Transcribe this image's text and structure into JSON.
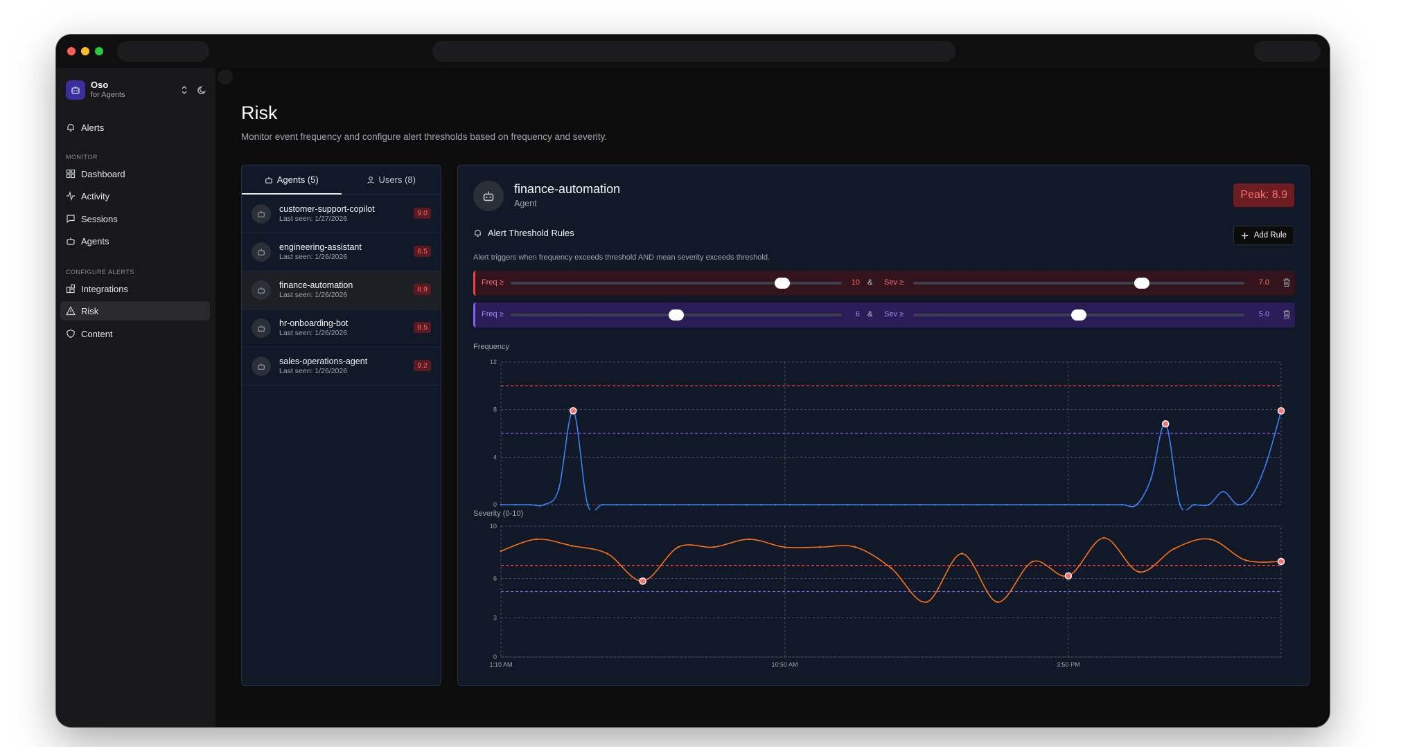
{
  "app": {
    "name": "Oso",
    "subtitle": "for Agents"
  },
  "sidebar": {
    "top_items": [
      {
        "label": "Alerts",
        "icon": "bell-icon"
      }
    ],
    "monitor_heading": "MONITOR",
    "monitor_items": [
      {
        "label": "Dashboard",
        "icon": "dashboard-icon"
      },
      {
        "label": "Activity",
        "icon": "activity-icon"
      },
      {
        "label": "Sessions",
        "icon": "sessions-icon"
      },
      {
        "label": "Agents",
        "icon": "robot-icon"
      }
    ],
    "configure_heading": "CONFIGURE ALERTS",
    "configure_items": [
      {
        "label": "Integrations",
        "icon": "integrations-icon"
      },
      {
        "label": "Risk",
        "icon": "warning-icon",
        "active": true
      },
      {
        "label": "Content",
        "icon": "shield-icon"
      }
    ]
  },
  "page": {
    "title": "Risk",
    "subtitle": "Monitor event frequency and configure alert thresholds based on frequency and severity."
  },
  "tabs": [
    {
      "label": "Agents (5)",
      "active": true
    },
    {
      "label": "Users (8)",
      "active": false
    }
  ],
  "agents": [
    {
      "name": "customer-support-copilot",
      "last_seen": "Last seen: 1/27/2026",
      "score": "9.0"
    },
    {
      "name": "engineering-assistant",
      "last_seen": "Last seen: 1/26/2026",
      "score": "6.5"
    },
    {
      "name": "finance-automation",
      "last_seen": "Last seen: 1/26/2026",
      "score": "8.9",
      "selected": true
    },
    {
      "name": "hr-onboarding-bot",
      "last_seen": "Last seen: 1/26/2026",
      "score": "8.5"
    },
    {
      "name": "sales-operations-agent",
      "last_seen": "Last seen: 1/26/2026",
      "score": "9.2"
    }
  ],
  "detail": {
    "name": "finance-automation",
    "type": "Agent",
    "peak": "Peak: 8.9",
    "rules_title": "Alert Threshold Rules",
    "add_rule": "Add Rule",
    "rules_desc": "Alert triggers when frequency exceeds threshold AND mean severity exceeds threshold.",
    "rules": [
      {
        "freq_label": "Freq ≥",
        "freq_value": "10",
        "amp": "&",
        "sev_label": "Sev ≥",
        "sev_value": "7.0",
        "color": "#ef4444",
        "freq_fraction": 0.82,
        "sev_fraction": 0.69
      },
      {
        "freq_label": "Freq ≥",
        "freq_value": "6",
        "amp": "&",
        "sev_label": "Sev ≥",
        "sev_value": "5.0",
        "color": "#8b5cf6",
        "freq_fraction": 0.5,
        "sev_fraction": 0.5
      }
    ],
    "frequency_label": "Frequency",
    "severity_label": "Severity (0-10)"
  },
  "chart_data": [
    {
      "type": "line",
      "ylabel": "Frequency",
      "ylim": [
        0,
        12
      ],
      "yticks": [
        "0",
        "4",
        "8",
        "12"
      ],
      "grid": true,
      "thresholds": [
        {
          "value": 10,
          "color": "#ef4444"
        },
        {
          "value": 6,
          "color": "#8b5cf6"
        }
      ],
      "series": [
        {
          "color": "#3b82f6",
          "values": [
            0,
            0,
            0,
            0,
            1.3,
            7.9,
            0,
            0,
            0,
            0,
            0,
            0,
            0,
            0,
            0,
            0,
            0,
            0,
            0,
            0,
            0,
            0,
            0,
            0,
            0,
            0,
            0,
            0,
            0,
            0,
            0,
            0,
            0,
            0,
            0,
            0,
            0,
            0,
            0,
            0,
            0,
            0,
            0,
            0,
            0,
            2.2,
            6.8,
            0,
            0,
            0,
            1.1,
            0,
            0.8,
            3.6,
            7.9
          ]
        }
      ],
      "highlights": [
        5,
        46,
        54
      ]
    },
    {
      "type": "line",
      "ylabel": "Severity (0-10)",
      "ylim": [
        0,
        10
      ],
      "yticks": [
        "0",
        "3",
        "6",
        "10"
      ],
      "xticks": [
        {
          "label": "1:10 AM",
          "index": 0
        },
        {
          "label": "10:50 AM",
          "index": 8
        },
        {
          "label": "3:50 PM",
          "index": 16
        }
      ],
      "grid": true,
      "thresholds": [
        {
          "value": 7,
          "color": "#ef4444"
        },
        {
          "value": 5,
          "color": "#8b5cf6"
        }
      ],
      "series": [
        {
          "color": "#f97316",
          "values": [
            8.1,
            9.0,
            8.5,
            7.9,
            5.8,
            8.4,
            8.4,
            9.0,
            8.4,
            8.4,
            8.4,
            6.8,
            4.2,
            7.9,
            4.2,
            7.3,
            6.2,
            9.1,
            6.5,
            8.3,
            9.0,
            7.4,
            7.3
          ]
        }
      ],
      "highlights": [
        4,
        16,
        22
      ]
    }
  ]
}
